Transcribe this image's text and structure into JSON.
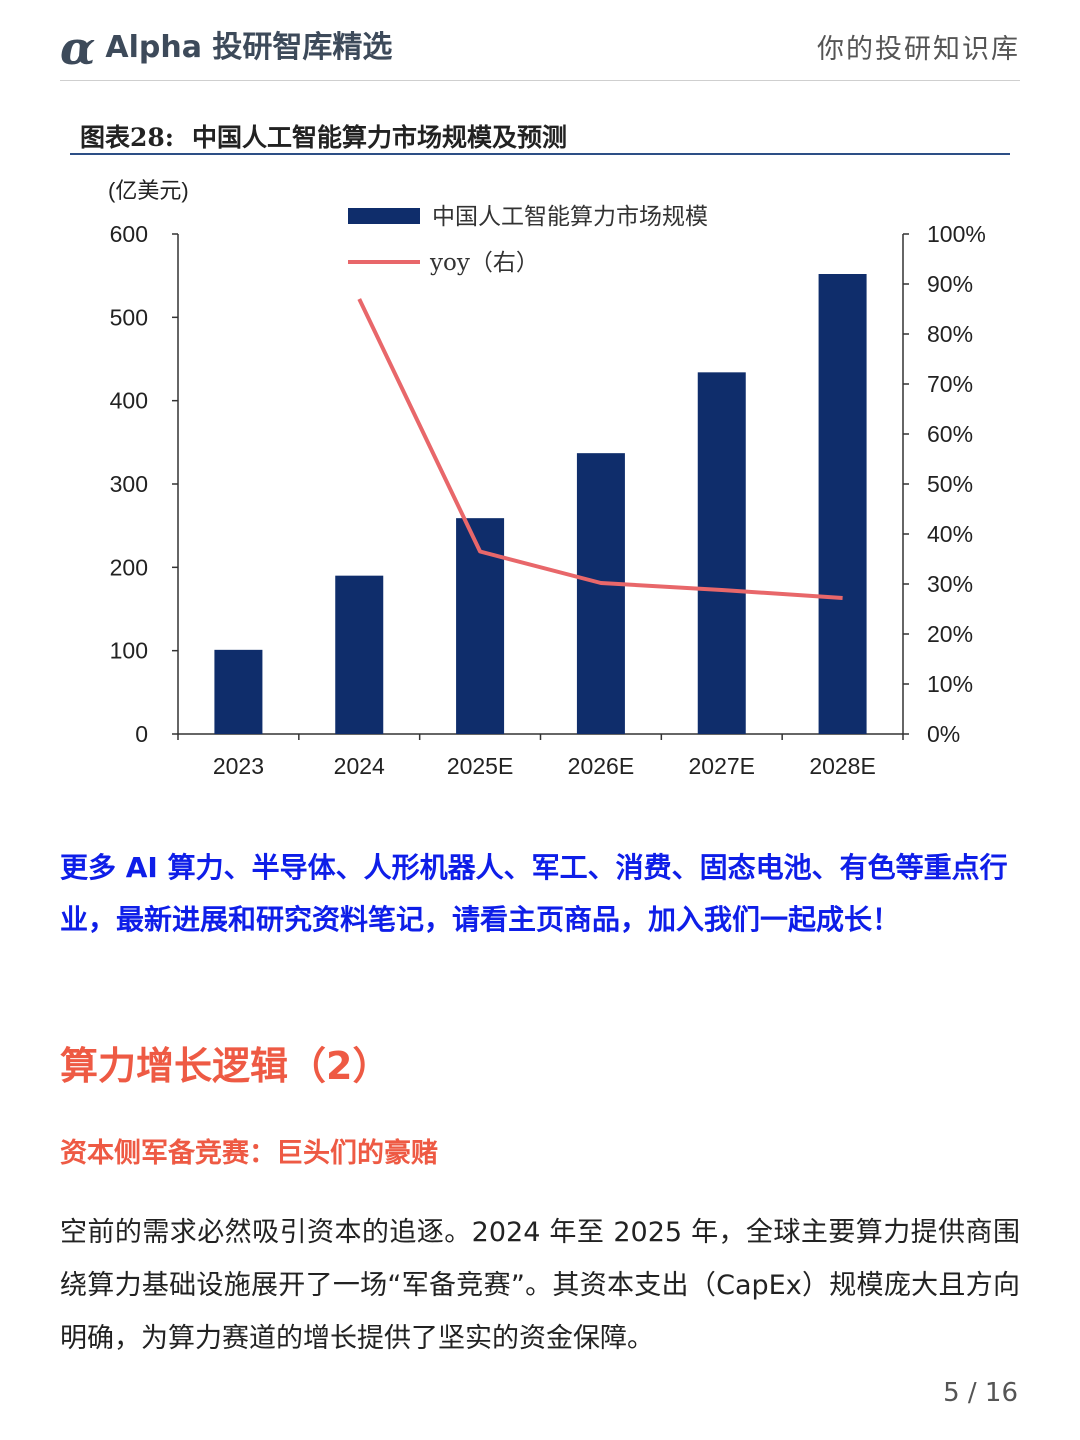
{
  "header": {
    "logo_glyph": "α",
    "brand": "Alpha 投研智库精选",
    "tagline": "你的投研知识库"
  },
  "chart": {
    "title_prefix": "图表28:",
    "title": "中国人工智能算力市场规模及预测"
  },
  "chart_data": {
    "type": "bar",
    "title": "中国人工智能算力市场规模及预测",
    "left_unit": "(亿美元)",
    "categories": [
      "2023",
      "2024",
      "2025E",
      "2026E",
      "2027E",
      "2028E"
    ],
    "series": [
      {
        "name": "中国人工智能算力市场规模",
        "type": "bar",
        "axis": "left",
        "color": "#0f2d6b",
        "values": [
          101,
          190,
          259,
          337,
          434,
          552
        ]
      },
      {
        "name": "yoy（右）",
        "type": "line",
        "axis": "right",
        "color": "#e8676a",
        "values": [
          null,
          87,
          36.5,
          30.2,
          28.8,
          27.2
        ]
      }
    ],
    "ylim_left": [
      0,
      600
    ],
    "yticks_left": [
      "0",
      "100",
      "200",
      "300",
      "400",
      "500",
      "600"
    ],
    "ylim_right": [
      0,
      100
    ],
    "yticks_right": [
      "0%",
      "10%",
      "20%",
      "30%",
      "40%",
      "50%",
      "60%",
      "70%",
      "80%",
      "90%",
      "100%"
    ],
    "legend_position": "top",
    "grid": false
  },
  "promo": {
    "text": "更多 AI 算力、半导体、人形机器人、军工、消费、固态电池、有色等重点行业，最新进展和研究资料笔记，请看主页商品，加入我们一起成长！"
  },
  "section": {
    "title": "算力增长逻辑（2）",
    "subtitle": "资本侧军备竞赛：巨头们的豪赌",
    "paragraph": "空前的需求必然吸引资本的追逐。2024 年至 2025 年，全球主要算力提供商围绕算力基础设施展开了一场“军备竞赛”。其资本支出（CapEx）规模庞大且方向明确，为算力赛道的增长提供了坚实的资金保障。"
  },
  "footer": {
    "page": "5 / 16"
  }
}
